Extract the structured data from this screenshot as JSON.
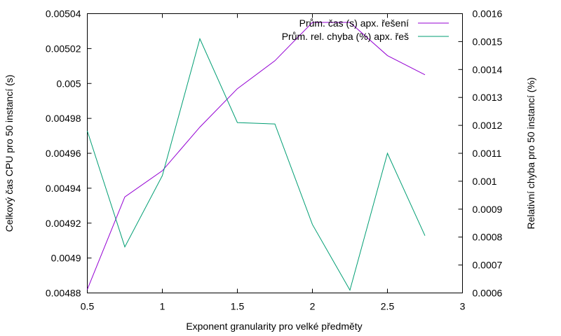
{
  "chart_data": {
    "type": "line",
    "xlabel": "Exponent granularity pro velké předměty",
    "ylabel_left": "Celkový čas CPU pro 50 instancí (s)",
    "ylabel_right": "Relativní chyba pro 50 instancí (%)",
    "xlim": [
      0.5,
      3
    ],
    "ylim_left": [
      0.00488,
      0.00504
    ],
    "ylim_right": [
      0.0006,
      0.0016
    ],
    "x_ticks": [
      "0.5",
      "1",
      "1.5",
      "2",
      "2.5",
      "3"
    ],
    "y_left_ticks": [
      "0.00488",
      "0.0049",
      "0.00492",
      "0.00494",
      "0.00496",
      "0.00498",
      "0.005",
      "0.00502",
      "0.00504"
    ],
    "y_right_ticks": [
      "0.0006",
      "0.0007",
      "0.0008",
      "0.0009",
      "0.001",
      "0.0011",
      "0.0012",
      "0.0013",
      "0.0014",
      "0.0015",
      "0.0016"
    ],
    "legend_position": "top-right",
    "grid": false,
    "series": [
      {
        "name": "Prům. čas (s)   apx. řešení",
        "axis": "left",
        "color": "#9400d3",
        "x": [
          0.5,
          0.75,
          1.0,
          1.25,
          1.5,
          1.75,
          2.0,
          2.25,
          2.5,
          2.75
        ],
        "y": [
          0.004882,
          0.004935,
          0.00495,
          0.004975,
          0.004997,
          0.005013,
          0.005035,
          0.005035,
          0.005016,
          0.005005
        ]
      },
      {
        "name": "Prům. rel. chyba (%) apx. řeš",
        "axis": "right",
        "color": "#009e73",
        "x": [
          0.5,
          0.75,
          1.0,
          1.25,
          1.5,
          1.75,
          2.0,
          2.25,
          2.5,
          2.75
        ],
        "y": [
          0.00118,
          0.000765,
          0.00102,
          0.00151,
          0.00121,
          0.001205,
          0.000845,
          0.00061,
          0.0011,
          0.000805
        ]
      }
    ]
  }
}
